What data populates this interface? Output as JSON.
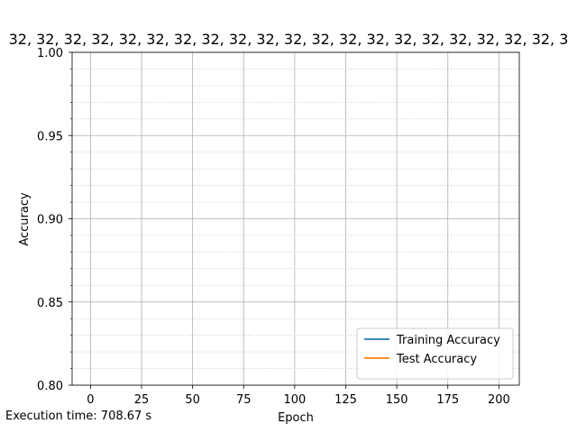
{
  "chart_data": {
    "type": "line",
    "title": "32, 32, 32, 32, 32, 32, 32, 32, 32, 32, 32, 32, 32, 32, 32, 32, 32, 32, 32, 32, 3",
    "xlabel": "Epoch",
    "ylabel": "Accuracy",
    "xlim": [
      -9,
      210
    ],
    "ylim": [
      0.8,
      1.0
    ],
    "x_ticks": [
      0,
      25,
      50,
      75,
      100,
      125,
      150,
      175,
      200
    ],
    "y_ticks": [
      0.8,
      0.85,
      0.9,
      0.95,
      1.0
    ],
    "y_tick_labels": [
      "0.80",
      "0.85",
      "0.90",
      "0.95",
      "1.00"
    ],
    "y_minor_step": 0.01,
    "grid": true,
    "legend_position": "lower-right",
    "series": [
      {
        "name": "Training Accuracy",
        "color": "#1f77b4",
        "x": [],
        "y": []
      },
      {
        "name": "Test Accuracy",
        "color": "#ff7f0e",
        "x": [],
        "y": []
      }
    ]
  },
  "footer": {
    "execution_time": "Execution time: 708.67 s"
  }
}
